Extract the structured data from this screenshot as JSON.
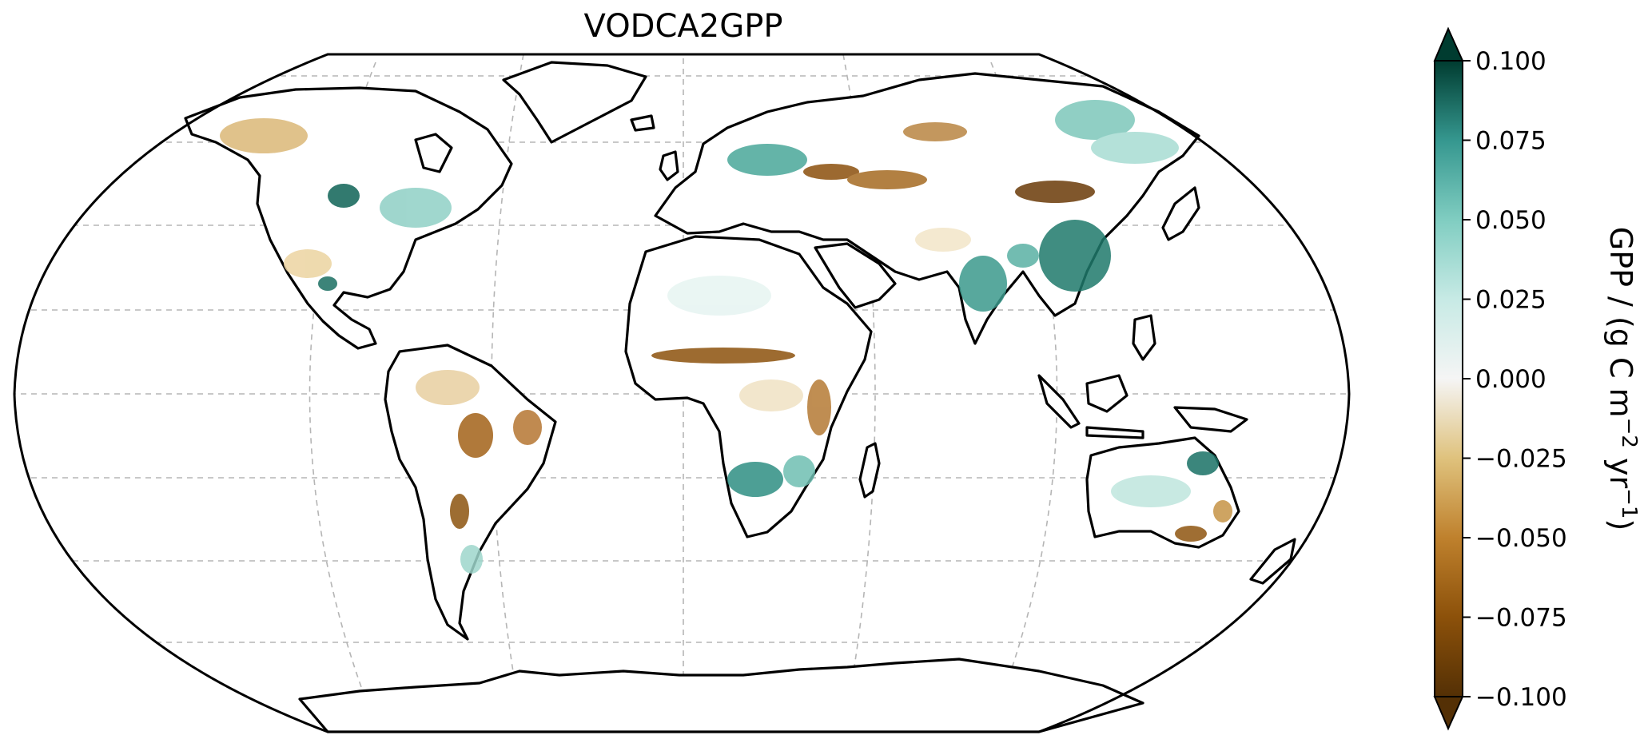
{
  "figure": {
    "title": "VODCA2GPP"
  },
  "colorbar": {
    "label_main": "GPP / (g C m",
    "label_exp1": "−2",
    "label_mid": " yr",
    "label_exp2": "−1",
    "label_close": ")",
    "min": -0.1,
    "max": 0.1,
    "extend": "both",
    "colormap": "BrBG",
    "ticks": [
      "0.100",
      "0.075",
      "0.050",
      "0.025",
      "0.000",
      "−0.025",
      "−0.050",
      "−0.075",
      "−0.100"
    ],
    "tick_values": [
      0.1,
      0.075,
      0.05,
      0.025,
      0.0,
      -0.025,
      -0.05,
      -0.075,
      -0.1
    ]
  },
  "map": {
    "projection": "Robinson",
    "gridlines": true,
    "palette": {
      "strong_positive": "#0b5148",
      "positive": "#4aa79a",
      "weak_positive": "#bfe6de",
      "neutral": "#f4f4f4",
      "weak_negative": "#ecdcb6",
      "negative": "#c48d3f",
      "strong_negative": "#7a4509"
    }
  }
}
